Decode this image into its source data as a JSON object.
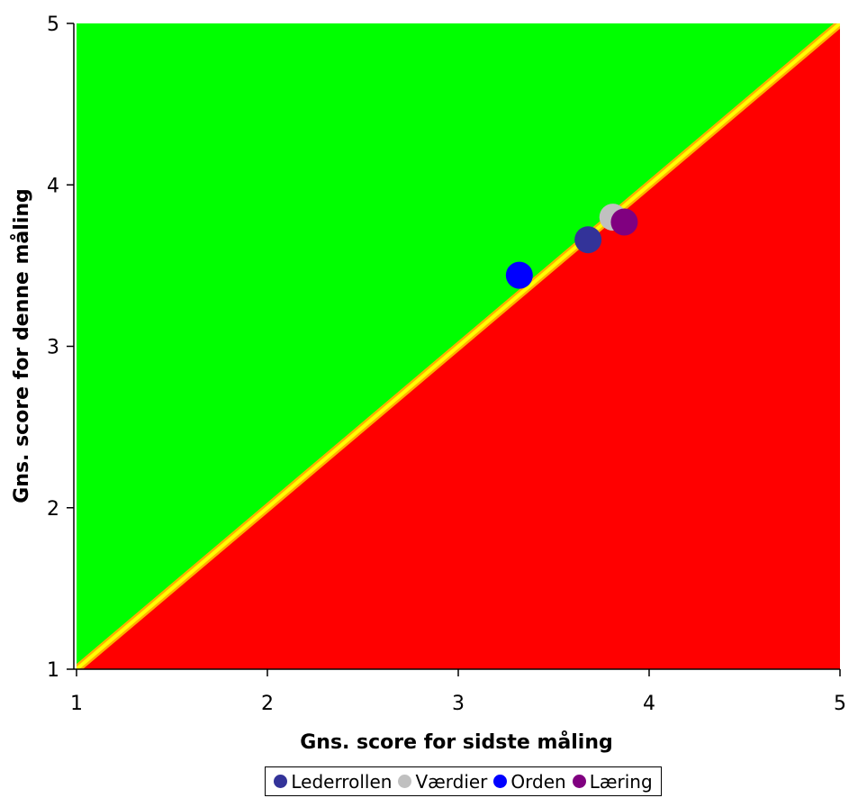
{
  "chart_data": {
    "type": "scatter",
    "xlabel": "Gns. score for sidste måling",
    "ylabel": "Gns. score for denne måling",
    "xlim": [
      1,
      5
    ],
    "ylim": [
      1,
      5
    ],
    "x_ticks": [
      "1",
      "2",
      "3",
      "4",
      "5"
    ],
    "y_ticks": [
      "1",
      "2",
      "3",
      "4",
      "5"
    ],
    "grid": false,
    "legend_position": "bottom",
    "background_regions": [
      {
        "region": "above-diagonal",
        "color": "#00ff00"
      },
      {
        "region": "below-diagonal",
        "color": "#ff0000"
      },
      {
        "region": "diagonal-line",
        "color": "#ffff00"
      }
    ],
    "series": [
      {
        "name": "Lederrollen",
        "color": "#333399",
        "x": [
          3.68
        ],
        "y": [
          3.66
        ]
      },
      {
        "name": "Værdier",
        "color": "#c0c0c0",
        "x": [
          3.81
        ],
        "y": [
          3.8
        ]
      },
      {
        "name": "Orden",
        "color": "#0000ff",
        "x": [
          3.32
        ],
        "y": [
          3.44
        ]
      },
      {
        "name": "Læring",
        "color": "#800080",
        "x": [
          3.87
        ],
        "y": [
          3.77
        ]
      }
    ]
  }
}
